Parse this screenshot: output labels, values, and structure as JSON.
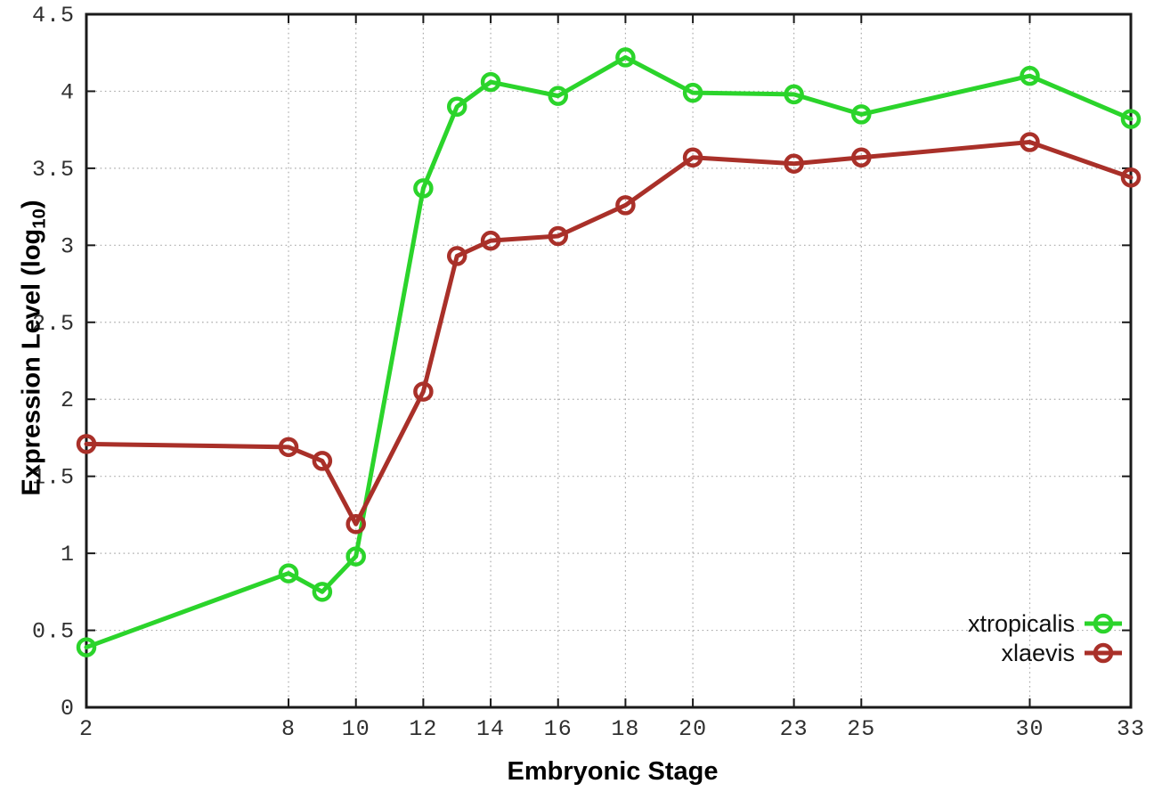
{
  "figure": {
    "xlabel": "Embryonic Stage",
    "ylabel_prefix": "Expression Level (log",
    "ylabel_sub": "10",
    "ylabel_suffix": ")"
  },
  "chart_data": {
    "type": "line",
    "title": "",
    "xlabel": "Embryonic Stage",
    "ylabel": "Expression Level (log10)",
    "x": [
      2,
      8,
      9,
      10,
      12,
      13,
      14,
      16,
      18,
      20,
      23,
      25,
      30,
      33
    ],
    "series": [
      {
        "name": "xtropicalis",
        "color": "#2bd42b",
        "values": [
          0.39,
          0.87,
          0.75,
          0.98,
          3.37,
          3.9,
          4.06,
          3.97,
          4.22,
          3.99,
          3.98,
          3.85,
          4.1,
          3.82
        ]
      },
      {
        "name": "xlaevis",
        "color": "#a93029",
        "values": [
          1.71,
          1.69,
          1.6,
          1.19,
          2.05,
          2.93,
          3.03,
          3.06,
          3.26,
          3.57,
          3.53,
          3.57,
          3.67,
          3.44
        ]
      }
    ],
    "xticks": [
      2,
      8,
      10,
      12,
      14,
      16,
      18,
      20,
      23,
      25,
      30,
      33
    ],
    "yticks": [
      0,
      0.5,
      1,
      1.5,
      2,
      2.5,
      3,
      3.5,
      4,
      4.5
    ],
    "xlim": [
      2,
      33
    ],
    "ylim": [
      0,
      4.5
    ],
    "grid": true,
    "marker": "open-circle",
    "legend_position": "bottom-right-inside",
    "colors": {
      "border": "#1a1a1a",
      "grid": "#ababab",
      "tick_label": "#303030"
    }
  }
}
